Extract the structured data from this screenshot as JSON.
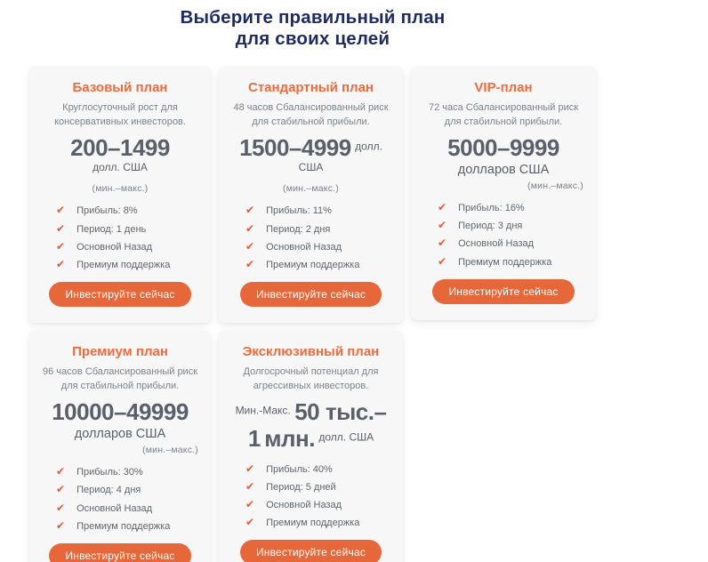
{
  "heading": {
    "line1": "Выберите правильный план",
    "line2": "для своих целей"
  },
  "shared": {
    "cta": "Инвестируйте сейчас"
  },
  "icons": {
    "check": "✔"
  },
  "colors": {
    "heading_navy": "#1e2b5e",
    "accent_orange": "#ed6b3f",
    "button_orange": "#e5673a",
    "check_orange": "#e05a3c",
    "price_gray": "#596069",
    "card_background": "#f7f7f7"
  },
  "cards": [
    {
      "title": "Базовый план",
      "description": "Круглосуточный рост для консервативных инвесторов.",
      "price": {
        "segments": [
          {
            "text": "200–1499",
            "style": "big"
          },
          {
            "text": "долл. США",
            "style": "sup"
          }
        ],
        "minmax": "(мин.–макс.)"
      },
      "features": [
        "Прибыль: 8%",
        "Период: 1 день",
        "Основной Назад",
        "Премиум поддержка"
      ]
    },
    {
      "title": "Стандартный план",
      "description": "48 часов Сбалансированный риск для стабильной прибыли.",
      "price": {
        "segments": [
          {
            "text": "1500–4999",
            "style": "big"
          },
          {
            "text": "долл. США",
            "style": "sup"
          }
        ],
        "minmax": "(мин.–макс.)"
      },
      "features": [
        "Прибыль: 11%",
        "Период: 2 дня",
        "Основной Назад",
        "Премиум поддержка"
      ]
    },
    {
      "title": "VIP-план",
      "description": "72 часа Сбалансированный риск для стабильной прибыли.",
      "price": {
        "segments": [
          {
            "text": "5000–9999",
            "style": "big"
          },
          {
            "text": "долларов США",
            "style": "normal"
          }
        ],
        "minmax": "(мин.–макс.)"
      },
      "features": [
        "Прибыль: 16%",
        "Период: 3 дня",
        "Основной Назад",
        "Премиум поддержка"
      ]
    },
    {
      "title": "Премиум план",
      "description": "96 часов Сбалансированный риск для стабильной прибыли.",
      "price": {
        "segments": [
          {
            "text": "10000–49999",
            "style": "big"
          },
          {
            "text": "долларов США",
            "style": "normal"
          }
        ],
        "minmax": "(мин.–макс.)"
      },
      "features": [
        "Прибыль: 30%",
        "Период: 4 дня",
        "Основной Назад",
        "Премиум поддержка"
      ]
    },
    {
      "title": "Эксклюзивный план",
      "description": "Долгосрочный потенциал для агрессивных инвесторов.",
      "price": {
        "segments": [
          {
            "text": "Мин.-Макс.",
            "style": "sup"
          },
          {
            "text": "50 тыс.–1",
            "style": "big"
          },
          {
            "text": "млн.",
            "style": "big"
          },
          {
            "text": "долл. США",
            "style": "sup"
          }
        ],
        "minmax": ""
      },
      "features": [
        "Прибыль: 40%",
        "Период: 5 дней",
        "Основной Назад",
        "Премиум поддержка"
      ]
    }
  ]
}
